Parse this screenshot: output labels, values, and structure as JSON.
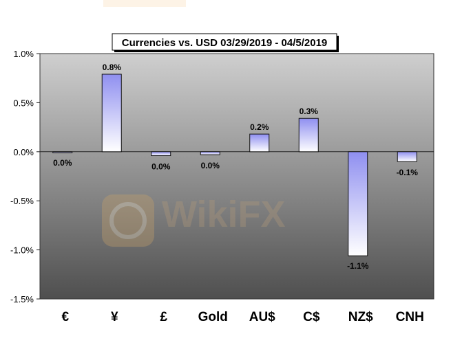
{
  "chart_data": {
    "type": "bar",
    "title": "Currencies vs. USD 03/29/2019 - 04/5/2019",
    "categories": [
      "€",
      "¥",
      "£",
      "Gold",
      "AU$",
      "C$",
      "NZ$",
      "CNH"
    ],
    "values": [
      0.0,
      0.79,
      -0.04,
      -0.03,
      0.18,
      0.34,
      -1.06,
      -0.1
    ],
    "data_labels": [
      "0.0%",
      "0.8%",
      "0.0%",
      "0.0%",
      "0.2%",
      "0.3%",
      "-1.1%",
      "-0.1%"
    ],
    "ylim": [
      -1.5,
      1.0
    ],
    "yticks": [
      1.0,
      0.5,
      0.0,
      -0.5,
      -1.0,
      -1.5
    ],
    "ytick_labels": [
      "1.0%",
      "0.5%",
      "0.0%",
      "-0.5%",
      "-1.0%",
      "-1.5%"
    ],
    "xlabel": "",
    "ylabel": "",
    "grid": false,
    "legend": "none"
  },
  "watermark": {
    "text": "WikiFX"
  },
  "colors": {
    "bar_top": "#8f8ff0",
    "bar_bottom": "#ffffff",
    "plot_top": "#cfcfcf",
    "plot_bottom": "#4f4f4f"
  }
}
